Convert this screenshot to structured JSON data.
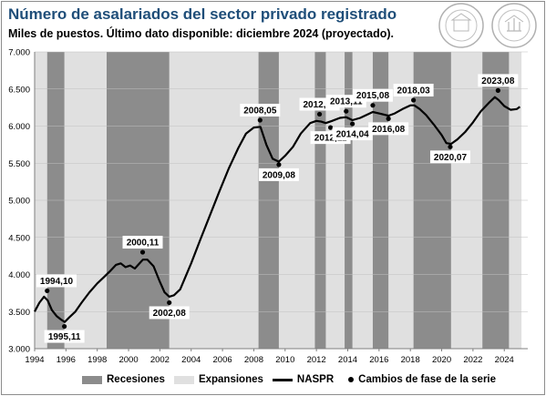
{
  "header": {
    "title": "Número de asalariados del sector privado registrado",
    "subtitle": "Miles de puestos.  Último dato disponible:  diciembre  2024 (proyectado)."
  },
  "logos": [
    {
      "name": "seal-left",
      "text": "BOLSA DE COMERCIO DE ROSARIO"
    },
    {
      "name": "seal-right",
      "text": "BOLSA DE COMERCIO DE ROSARIO"
    }
  ],
  "legend": {
    "recesiones": "Recesiones",
    "expansiones": "Expansiones",
    "naspr": "NASPR",
    "cambios": "Cambios de fase de la serie"
  },
  "colors": {
    "recession": "#8c8c8c",
    "expansion": "#e0e0e0",
    "line": "#000000",
    "title": "#1f4e79"
  },
  "chart_data": {
    "type": "line",
    "xlim": [
      1994,
      2025.5
    ],
    "ylim": [
      3000,
      7000
    ],
    "x_ticks": [
      1994,
      1996,
      1998,
      2000,
      2002,
      2004,
      2006,
      2008,
      2010,
      2012,
      2014,
      2016,
      2018,
      2020,
      2022,
      2024
    ],
    "y_ticks": [
      "3.000",
      "3.500",
      "4.000",
      "4.500",
      "5.000",
      "5.500",
      "6.000",
      "6.500",
      "7.000"
    ],
    "y_tick_values": [
      3000,
      3500,
      4000,
      4500,
      5000,
      5500,
      6000,
      6500,
      7000
    ],
    "recessions": [
      [
        1994.8,
        1995.9
      ],
      [
        1998.6,
        2002.6
      ],
      [
        2008.3,
        2009.6
      ],
      [
        2011.9,
        2012.6
      ],
      [
        2013.8,
        2014.3
      ],
      [
        2015.6,
        2016.6
      ],
      [
        2018.2,
        2020.6
      ],
      [
        2022.6,
        2024.3
      ]
    ],
    "expansions": [
      [
        1994,
        1994.8
      ],
      [
        1995.9,
        1998.6
      ],
      [
        2002.6,
        2008.3
      ],
      [
        2009.6,
        2011.9
      ],
      [
        2012.6,
        2013.8
      ],
      [
        2014.3,
        2015.6
      ],
      [
        2016.6,
        2018.2
      ],
      [
        2020.6,
        2022.6
      ],
      [
        2024.3,
        2025.1
      ]
    ],
    "series": [
      {
        "name": "NASPR",
        "points": [
          [
            1994.0,
            3500
          ],
          [
            1994.3,
            3620
          ],
          [
            1994.6,
            3700
          ],
          [
            1994.83,
            3650
          ],
          [
            1995.1,
            3520
          ],
          [
            1995.4,
            3440
          ],
          [
            1995.7,
            3390
          ],
          [
            1995.92,
            3360
          ],
          [
            1996.2,
            3420
          ],
          [
            1996.6,
            3500
          ],
          [
            1997.0,
            3620
          ],
          [
            1997.5,
            3760
          ],
          [
            1998.0,
            3880
          ],
          [
            1998.4,
            3960
          ],
          [
            1998.8,
            4040
          ],
          [
            1999.2,
            4130
          ],
          [
            1999.5,
            4150
          ],
          [
            1999.8,
            4100
          ],
          [
            2000.1,
            4120
          ],
          [
            2000.4,
            4080
          ],
          [
            2000.7,
            4150
          ],
          [
            2000.92,
            4200
          ],
          [
            2001.2,
            4200
          ],
          [
            2001.6,
            4110
          ],
          [
            2002.0,
            3900
          ],
          [
            2002.3,
            3760
          ],
          [
            2002.6,
            3700
          ],
          [
            2002.9,
            3720
          ],
          [
            2003.3,
            3800
          ],
          [
            2004.0,
            4150
          ],
          [
            2004.6,
            4480
          ],
          [
            2005.2,
            4800
          ],
          [
            2005.8,
            5120
          ],
          [
            2006.4,
            5430
          ],
          [
            2007.0,
            5700
          ],
          [
            2007.5,
            5900
          ],
          [
            2008.0,
            5980
          ],
          [
            2008.42,
            5990
          ],
          [
            2008.8,
            5750
          ],
          [
            2009.2,
            5560
          ],
          [
            2009.6,
            5520
          ],
          [
            2010.0,
            5600
          ],
          [
            2010.5,
            5720
          ],
          [
            2011.0,
            5900
          ],
          [
            2011.6,
            6040
          ],
          [
            2012.0,
            6070
          ],
          [
            2012.3,
            6060
          ],
          [
            2012.6,
            6040
          ],
          [
            2013.0,
            6070
          ],
          [
            2013.5,
            6110
          ],
          [
            2013.9,
            6120
          ],
          [
            2014.3,
            6080
          ],
          [
            2014.8,
            6110
          ],
          [
            2015.2,
            6150
          ],
          [
            2015.6,
            6190
          ],
          [
            2016.0,
            6170
          ],
          [
            2016.6,
            6140
          ],
          [
            2017.0,
            6170
          ],
          [
            2017.5,
            6230
          ],
          [
            2018.0,
            6280
          ],
          [
            2018.25,
            6280
          ],
          [
            2018.6,
            6230
          ],
          [
            2019.0,
            6150
          ],
          [
            2019.5,
            6020
          ],
          [
            2020.0,
            5880
          ],
          [
            2020.3,
            5770
          ],
          [
            2020.6,
            5760
          ],
          [
            2021.0,
            5820
          ],
          [
            2021.5,
            5920
          ],
          [
            2022.0,
            6050
          ],
          [
            2022.5,
            6200
          ],
          [
            2023.0,
            6310
          ],
          [
            2023.4,
            6390
          ],
          [
            2023.65,
            6350
          ],
          [
            2024.0,
            6270
          ],
          [
            2024.4,
            6220
          ],
          [
            2024.8,
            6230
          ],
          [
            2025.0,
            6260
          ]
        ]
      }
    ],
    "phase_changes": [
      {
        "label": "1994,10",
        "x": 1994.8,
        "y": 3780,
        "pos": "above"
      },
      {
        "label": "1995,11",
        "x": 1995.9,
        "y": 3300,
        "pos": "below"
      },
      {
        "label": "2000,11",
        "x": 2000.9,
        "y": 4300,
        "pos": "above"
      },
      {
        "label": "2002,08",
        "x": 2002.6,
        "y": 3620,
        "pos": "below"
      },
      {
        "label": "2008,05",
        "x": 2008.4,
        "y": 6080,
        "pos": "above"
      },
      {
        "label": "2009,08",
        "x": 2009.6,
        "y": 5480,
        "pos": "below"
      },
      {
        "label": "2012,03",
        "x": 2012.2,
        "y": 6160,
        "pos": "above"
      },
      {
        "label": "2012,11",
        "x": 2012.9,
        "y": 5980,
        "pos": "below"
      },
      {
        "label": "2013,11",
        "x": 2013.9,
        "y": 6200,
        "pos": "above"
      },
      {
        "label": "2014,04",
        "x": 2014.3,
        "y": 6030,
        "pos": "below"
      },
      {
        "label": "2015,08",
        "x": 2015.6,
        "y": 6280,
        "pos": "above"
      },
      {
        "label": "2016,08",
        "x": 2016.6,
        "y": 6100,
        "pos": "below"
      },
      {
        "label": "2018,03",
        "x": 2018.2,
        "y": 6350,
        "pos": "above"
      },
      {
        "label": "2020,07",
        "x": 2020.55,
        "y": 5720,
        "pos": "below"
      },
      {
        "label": "2023,08",
        "x": 2023.6,
        "y": 6480,
        "pos": "above"
      }
    ]
  }
}
